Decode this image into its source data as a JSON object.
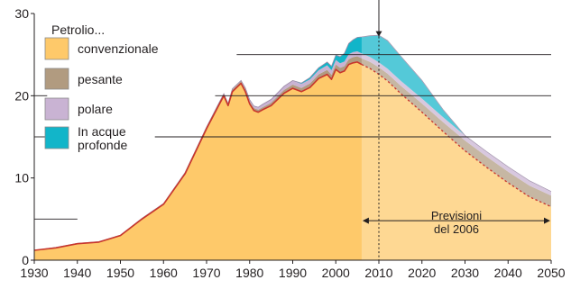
{
  "chart_data": {
    "type": "area",
    "stacked": true,
    "title": "",
    "xlabel": "",
    "ylabel": "",
    "xlim": [
      1930,
      2050
    ],
    "ylim": [
      0,
      30
    ],
    "x_ticks": [
      1930,
      1940,
      1950,
      1960,
      1970,
      1980,
      1990,
      2000,
      2010,
      2020,
      2030,
      2040,
      2050
    ],
    "y_ticks": [
      0,
      10,
      20,
      30
    ],
    "grid": "horizontal lines at 5, 15, 20, 25 (partial)",
    "legend_title": "Petrolio...",
    "legend_position": "top-left",
    "forecast_start": 2006,
    "peak_marker_year": 2010,
    "annotation": {
      "line1": "Previsioni",
      "line2": "del 2006"
    },
    "x": [
      1930,
      1935,
      1940,
      1945,
      1950,
      1955,
      1960,
      1965,
      1970,
      1973,
      1974,
      1975,
      1976,
      1977,
      1978,
      1979,
      1980,
      1981,
      1982,
      1983,
      1985,
      1988,
      1990,
      1992,
      1994,
      1996,
      1998,
      1999,
      2000,
      2001,
      2002,
      2003,
      2004,
      2005,
      2006,
      2008,
      2010,
      2012,
      2015,
      2020,
      2025,
      2030,
      2035,
      2040,
      2045,
      2050
    ],
    "series": [
      {
        "name": "convenzionale",
        "color": "#fec96a",
        "values": [
          1.2,
          1.5,
          2.0,
          2.2,
          3.0,
          5.0,
          6.8,
          10.5,
          16.0,
          19.0,
          20.0,
          18.8,
          20.5,
          21.0,
          21.5,
          20.5,
          19.0,
          18.2,
          18.0,
          18.3,
          18.8,
          20.3,
          20.9,
          20.5,
          21.0,
          22.1,
          22.6,
          22.0,
          23.2,
          22.8,
          23.0,
          23.8,
          24.0,
          24.1,
          23.8,
          23.3,
          22.6,
          21.8,
          20.3,
          18.0,
          15.6,
          13.3,
          11.3,
          9.4,
          7.7,
          6.5
        ]
      },
      {
        "name": "pesante",
        "color": "#b19b80",
        "values": [
          0.0,
          0.05,
          0.05,
          0.05,
          0.05,
          0.1,
          0.1,
          0.15,
          0.2,
          0.2,
          0.2,
          0.2,
          0.25,
          0.25,
          0.25,
          0.3,
          0.3,
          0.3,
          0.3,
          0.3,
          0.35,
          0.4,
          0.45,
          0.45,
          0.5,
          0.5,
          0.55,
          0.55,
          0.6,
          0.6,
          0.6,
          0.65,
          0.7,
          0.7,
          0.75,
          0.8,
          0.85,
          0.9,
          0.95,
          1.05,
          1.15,
          1.25,
          1.3,
          1.35,
          1.35,
          1.35
        ]
      },
      {
        "name": "polare",
        "color": "#c9b3d3",
        "values": [
          0.0,
          0.0,
          0.0,
          0.0,
          0.0,
          0.0,
          0.0,
          0.0,
          0.0,
          0.05,
          0.05,
          0.05,
          0.1,
          0.1,
          0.1,
          0.15,
          0.2,
          0.25,
          0.3,
          0.35,
          0.4,
          0.45,
          0.5,
          0.5,
          0.5,
          0.5,
          0.55,
          0.55,
          0.55,
          0.55,
          0.55,
          0.6,
          0.6,
          0.6,
          0.6,
          0.6,
          0.6,
          0.6,
          0.6,
          0.6,
          0.6,
          0.6,
          0.6,
          0.6,
          0.6,
          0.5
        ]
      },
      {
        "name": "In acque profonde",
        "label_lines": [
          "In acque",
          "profonde"
        ],
        "color": "#12b5c9",
        "values": [
          0.0,
          0.0,
          0.0,
          0.0,
          0.0,
          0.0,
          0.0,
          0.0,
          0.0,
          0.0,
          0.0,
          0.0,
          0.0,
          0.0,
          0.0,
          0.0,
          0.0,
          0.0,
          0.0,
          0.0,
          0.0,
          0.0,
          0.0,
          0.1,
          0.2,
          0.3,
          0.4,
          0.5,
          0.6,
          0.8,
          1.0,
          1.3,
          1.5,
          1.7,
          2.0,
          2.6,
          3.3,
          3.4,
          3.0,
          2.2,
          0.9,
          0.0,
          0.0,
          0.0,
          0.0,
          0.0
        ]
      }
    ]
  }
}
